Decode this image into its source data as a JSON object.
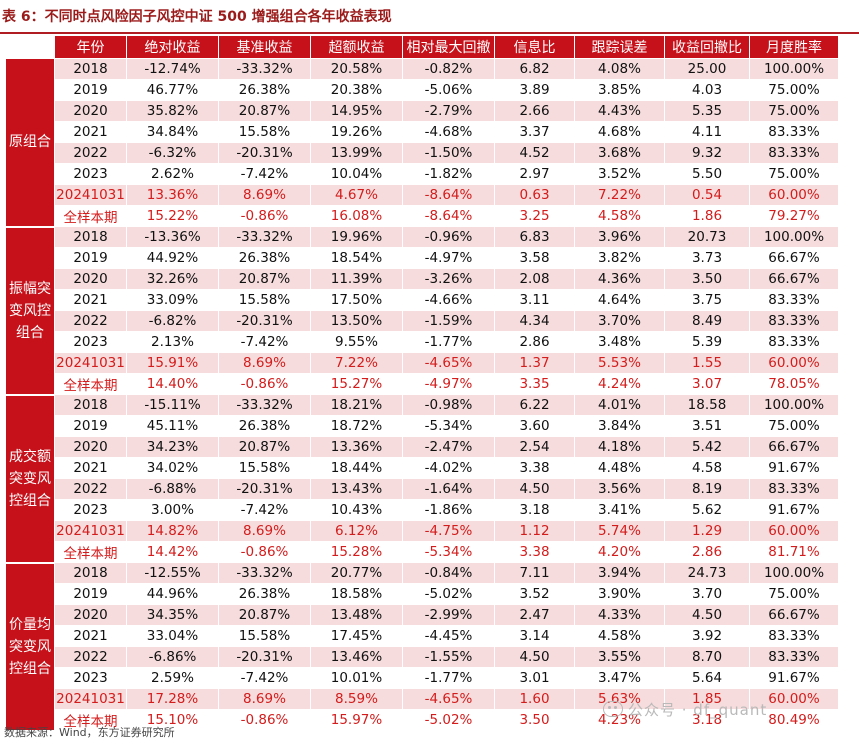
{
  "title": "表 6：不同时点风险因子风控中证 500 增强组合各年收益表现",
  "source": "数据来源：Wind，东方证券研究所",
  "watermark": "公众号 · df_quant",
  "colors": {
    "accent_red": "#c6111a",
    "highlight_text": "#d41c1c",
    "row_shade": "#f6dcdc"
  },
  "headers": [
    "年份",
    "绝对收益",
    "基准收益",
    "超额收益",
    "相对最大回撤",
    "信息比",
    "跟踪误差",
    "收益回撤比",
    "月度胜率"
  ],
  "groups": [
    {
      "name": "原组合",
      "rows": [
        [
          "2018",
          "-12.74%",
          "-33.32%",
          "20.58%",
          "-0.82%",
          "6.82",
          "4.08%",
          "25.00",
          "100.00%"
        ],
        [
          "2019",
          "46.77%",
          "26.38%",
          "20.38%",
          "-5.06%",
          "3.89",
          "3.85%",
          "4.03",
          "75.00%"
        ],
        [
          "2020",
          "35.82%",
          "20.87%",
          "14.95%",
          "-2.79%",
          "2.66",
          "4.43%",
          "5.35",
          "75.00%"
        ],
        [
          "2021",
          "34.84%",
          "15.58%",
          "19.26%",
          "-4.68%",
          "3.37",
          "4.68%",
          "4.11",
          "83.33%"
        ],
        [
          "2022",
          "-6.32%",
          "-20.31%",
          "13.99%",
          "-1.50%",
          "4.52",
          "3.68%",
          "9.32",
          "83.33%"
        ],
        [
          "2023",
          "2.62%",
          "-7.42%",
          "10.04%",
          "-1.82%",
          "2.97",
          "3.52%",
          "5.50",
          "75.00%"
        ],
        [
          "20241031",
          "13.36%",
          "8.69%",
          "4.67%",
          "-8.64%",
          "0.63",
          "7.22%",
          "0.54",
          "60.00%"
        ],
        [
          "全样本期",
          "15.22%",
          "-0.86%",
          "16.08%",
          "-8.64%",
          "3.25",
          "4.58%",
          "1.86",
          "79.27%"
        ]
      ]
    },
    {
      "name": "振幅突变风控组合",
      "rows": [
        [
          "2018",
          "-13.36%",
          "-33.32%",
          "19.96%",
          "-0.96%",
          "6.83",
          "3.96%",
          "20.73",
          "100.00%"
        ],
        [
          "2019",
          "44.92%",
          "26.38%",
          "18.54%",
          "-4.97%",
          "3.58",
          "3.82%",
          "3.73",
          "66.67%"
        ],
        [
          "2020",
          "32.26%",
          "20.87%",
          "11.39%",
          "-3.26%",
          "2.08",
          "4.36%",
          "3.50",
          "66.67%"
        ],
        [
          "2021",
          "33.09%",
          "15.58%",
          "17.50%",
          "-4.66%",
          "3.11",
          "4.64%",
          "3.75",
          "83.33%"
        ],
        [
          "2022",
          "-6.82%",
          "-20.31%",
          "13.50%",
          "-1.59%",
          "4.34",
          "3.70%",
          "8.49",
          "83.33%"
        ],
        [
          "2023",
          "2.13%",
          "-7.42%",
          "9.55%",
          "-1.77%",
          "2.86",
          "3.48%",
          "5.39",
          "83.33%"
        ],
        [
          "20241031",
          "15.91%",
          "8.69%",
          "7.22%",
          "-4.65%",
          "1.37",
          "5.53%",
          "1.55",
          "60.00%"
        ],
        [
          "全样本期",
          "14.40%",
          "-0.86%",
          "15.27%",
          "-4.97%",
          "3.35",
          "4.24%",
          "3.07",
          "78.05%"
        ]
      ]
    },
    {
      "name": "成交额突变风控组合",
      "rows": [
        [
          "2018",
          "-15.11%",
          "-33.32%",
          "18.21%",
          "-0.98%",
          "6.22",
          "4.01%",
          "18.58",
          "100.00%"
        ],
        [
          "2019",
          "45.11%",
          "26.38%",
          "18.72%",
          "-5.34%",
          "3.60",
          "3.84%",
          "3.51",
          "75.00%"
        ],
        [
          "2020",
          "34.23%",
          "20.87%",
          "13.36%",
          "-2.47%",
          "2.54",
          "4.18%",
          "5.42",
          "66.67%"
        ],
        [
          "2021",
          "34.02%",
          "15.58%",
          "18.44%",
          "-4.02%",
          "3.38",
          "4.48%",
          "4.58",
          "91.67%"
        ],
        [
          "2022",
          "-6.88%",
          "-20.31%",
          "13.43%",
          "-1.64%",
          "4.50",
          "3.56%",
          "8.19",
          "83.33%"
        ],
        [
          "2023",
          "3.00%",
          "-7.42%",
          "10.43%",
          "-1.86%",
          "3.18",
          "3.41%",
          "5.62",
          "91.67%"
        ],
        [
          "20241031",
          "14.82%",
          "8.69%",
          "6.12%",
          "-4.75%",
          "1.12",
          "5.74%",
          "1.29",
          "60.00%"
        ],
        [
          "全样本期",
          "14.42%",
          "-0.86%",
          "15.28%",
          "-5.34%",
          "3.38",
          "4.20%",
          "2.86",
          "81.71%"
        ]
      ]
    },
    {
      "name": "价量均突变风控组合",
      "rows": [
        [
          "2018",
          "-12.55%",
          "-33.32%",
          "20.77%",
          "-0.84%",
          "7.11",
          "3.94%",
          "24.73",
          "100.00%"
        ],
        [
          "2019",
          "44.96%",
          "26.38%",
          "18.58%",
          "-5.02%",
          "3.52",
          "3.90%",
          "3.70",
          "75.00%"
        ],
        [
          "2020",
          "34.35%",
          "20.87%",
          "13.48%",
          "-2.99%",
          "2.47",
          "4.33%",
          "4.50",
          "66.67%"
        ],
        [
          "2021",
          "33.04%",
          "15.58%",
          "17.45%",
          "-4.45%",
          "3.14",
          "4.58%",
          "3.92",
          "83.33%"
        ],
        [
          "2022",
          "-6.86%",
          "-20.31%",
          "13.46%",
          "-1.55%",
          "4.50",
          "3.55%",
          "8.70",
          "83.33%"
        ],
        [
          "2023",
          "2.59%",
          "-7.42%",
          "10.01%",
          "-1.77%",
          "3.01",
          "3.47%",
          "5.64",
          "91.67%"
        ],
        [
          "20241031",
          "17.28%",
          "8.69%",
          "8.59%",
          "-4.65%",
          "1.60",
          "5.63%",
          "1.85",
          "60.00%"
        ],
        [
          "全样本期",
          "15.10%",
          "-0.86%",
          "15.97%",
          "-5.02%",
          "3.50",
          "4.23%",
          "3.18",
          "80.49%"
        ]
      ]
    }
  ]
}
